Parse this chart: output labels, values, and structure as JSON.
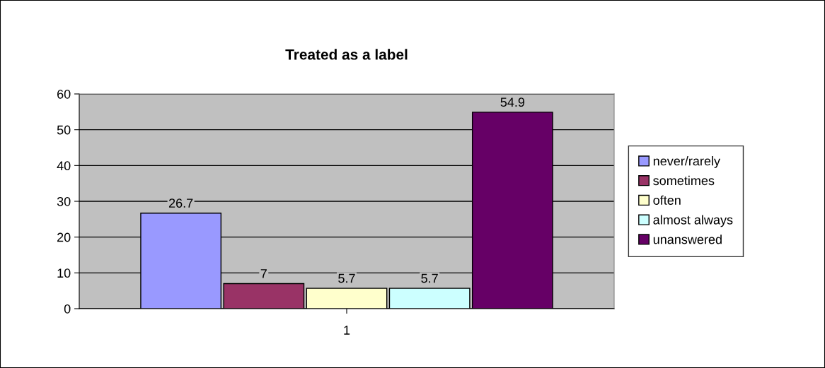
{
  "chart_data": {
    "type": "bar",
    "title": "Treated as a label",
    "categories": [
      "1"
    ],
    "series": [
      {
        "name": "never/rarely",
        "color": "#9999ff",
        "values": [
          26.7
        ]
      },
      {
        "name": "sometimes",
        "color": "#993366",
        "values": [
          7
        ]
      },
      {
        "name": "often",
        "color": "#ffffcc",
        "values": [
          5.7
        ]
      },
      {
        "name": "almost always",
        "color": "#ccffff",
        "values": [
          5.7
        ]
      },
      {
        "name": "unanswered",
        "color": "#660066",
        "values": [
          54.9
        ]
      }
    ],
    "ylim": [
      0,
      60
    ],
    "yticks": [
      0,
      10,
      20,
      30,
      40,
      50,
      60
    ],
    "grid": "y",
    "legend": "right",
    "data_labels": true
  }
}
